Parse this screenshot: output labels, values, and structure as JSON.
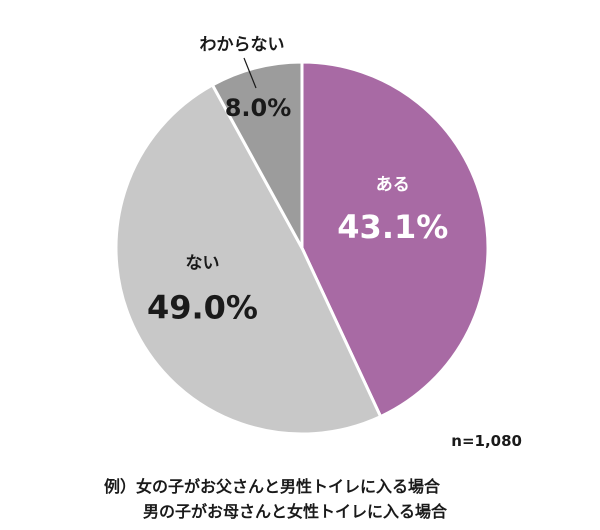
{
  "chart_data": {
    "type": "pie",
    "start": "top, clockwise",
    "slices": [
      {
        "label": "ある",
        "value": 43.1,
        "display": "43.1%",
        "color": "#a86aa4"
      },
      {
        "label": "ない",
        "value": 49.0,
        "display": "49.0%",
        "color": "#c8c8c8"
      },
      {
        "label": "わからない",
        "value": 8.0,
        "display": "8.0%",
        "color": "#9c9c9c"
      }
    ],
    "sample_size": "n=1,080"
  },
  "note": {
    "line1": "例）女の子がお父さんと男性トイレに入る場合",
    "line2": "男の子がお母さんと女性トイレに入る場合"
  }
}
